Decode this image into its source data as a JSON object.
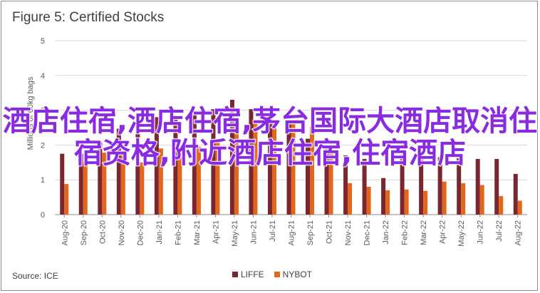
{
  "chart_data": {
    "type": "bar",
    "title": "Figure 5: Certified Stocks",
    "ylabel": "Millions of 60kg bags",
    "xlabel": "",
    "ylim": [
      0,
      5
    ],
    "yticks": [
      0,
      1,
      2,
      3,
      4,
      5
    ],
    "grid": true,
    "legend_position": "bottom",
    "categories": [
      "Aug-20",
      "Sep-20",
      "Oct-20",
      "Nov-20",
      "Dec-20",
      "Jan-21",
      "Feb-21",
      "Mar-21",
      "Apr-21",
      "May-21",
      "Jun-21",
      "Jul-21",
      "Aug-21",
      "Sep-21",
      "Oct-21",
      "Nov-21",
      "Dec-21",
      "Jan-22",
      "Feb-22",
      "Mar-22",
      "Apr-22",
      "May-22",
      "Jun-22",
      "Jul-22",
      "Aug-22"
    ],
    "series": [
      {
        "name": "LIFFE",
        "color": "#7b2531",
        "values": [
          1.75,
          1.75,
          2.08,
          2.47,
          2.6,
          2.8,
          2.85,
          2.98,
          3.03,
          3.3,
          3.03,
          2.85,
          2.6,
          2.18,
          1.95,
          1.7,
          1.6,
          1.05,
          1.72,
          1.68,
          1.65,
          1.62,
          1.6,
          1.6,
          1.17
        ]
      },
      {
        "name": "NYBOT",
        "color": "#e2661b",
        "values": [
          0.88,
          1.5,
          1.78,
          1.78,
          1.5,
          1.9,
          1.85,
          1.95,
          2.12,
          2.42,
          2.65,
          2.65,
          2.6,
          2.53,
          2.0,
          0.9,
          0.8,
          0.7,
          0.72,
          0.68,
          0.95,
          0.9,
          0.85,
          0.53,
          0.4
        ]
      }
    ]
  },
  "source": "Source: ICE",
  "overlay_text": "酒店住宿,酒店住宿,茅台国际大酒店取消住宿资格,附近酒店住宿,住宿酒店"
}
